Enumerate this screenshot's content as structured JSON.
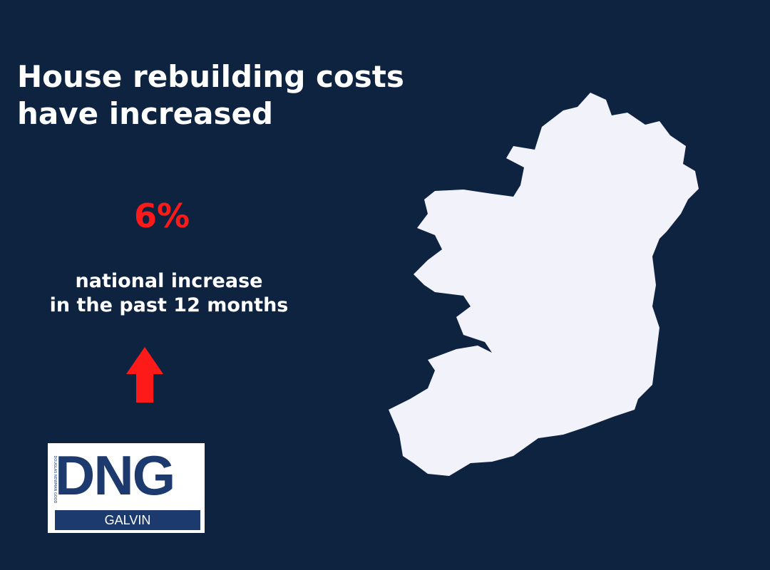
{
  "header": {
    "title_lines": [
      "House rebuilding costs",
      "have increased"
    ]
  },
  "stat": {
    "value": "6%",
    "description_lines": [
      "national increase",
      "in the past 12 months"
    ]
  },
  "logo": {
    "tagline": "DOUGLAS NEWMAN GOOD",
    "brand": "DNG",
    "branch": "GALVIN"
  }
}
